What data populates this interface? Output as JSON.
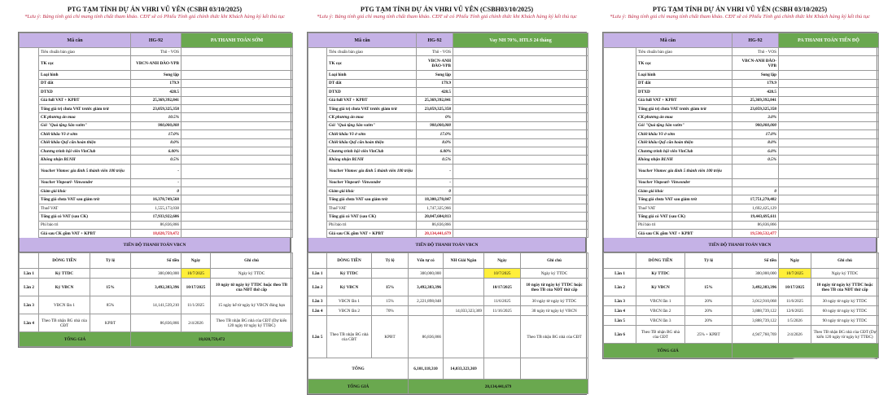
{
  "panels": [
    {
      "title": "PTG TẠM TÍNH DỰ ÁN VHRI VŨ YÊN (CSBH 03/10/2025)",
      "note": "*Lưu ý: Bảng tính giá chỉ mang tính chất tham khảo. CĐT sẽ có Phiếu Tính giá chính thức khi Khách hàng ký kết thủ tục",
      "header": {
        "label": "Mã căn",
        "code": "HG-92",
        "option": "PA THANH TOÁN SỚM"
      },
      "rows": [
        {
          "label": "Tiêu chuẩn bàn giao",
          "value": "Thô - VOS"
        },
        {
          "label": "TK cọc",
          "value": "VBCN-ANH ĐÀO-VPB"
        },
        {
          "label": "Loại hình",
          "value": "Song lập"
        },
        {
          "label": "DT đất",
          "value": "179.9"
        },
        {
          "label": "DTXD",
          "value": "428.5"
        },
        {
          "label": "Giá full VAT + KPBT",
          "value": "25,369,392,841"
        },
        {
          "label": "Tổng giá trị chưa VAT trước giảm trừ",
          "value": "23,059,325,358"
        },
        {
          "label": "CK phương án mua",
          "value": "10.5%"
        },
        {
          "label": "Gói \"Quà tặng Sân vườn\"",
          "value": "900,000,000"
        },
        {
          "label": "Chiết khấu Về ở sớm",
          "value": "17.0%"
        },
        {
          "label": "Chiết khấu Quỹ căn hoàn thiện",
          "value": "8.0%"
        },
        {
          "label": "Chương trình hội viên VinClub",
          "value": "6.00%"
        },
        {
          "label": "Không nhận BLNH",
          "value": "0.5%"
        },
        {
          "label": "Voucher Vinmec gia đình 5 thành viên 100 triệu",
          "value": "-"
        },
        {
          "label": "Voucher Vinpearl- Vinwonder",
          "value": "-"
        },
        {
          "label": "Giảm giá khác",
          "value": "0"
        },
        {
          "label": "Tổng giá chưa VAT sau giảm trừ",
          "value": "16,378,749,568"
        },
        {
          "label": "Thuế VAT",
          "value": "1,555,173,038"
        },
        {
          "label": "Tổng giá có VAT (sau CK)",
          "value": "17,933,922,606"
        },
        {
          "label": "Phí bảo trì",
          "value": "86,836,866"
        },
        {
          "label": "Giá sau CK gồm VAT + KPBT",
          "value": "18,020,759,472"
        }
      ],
      "schedule": {
        "title": "TIẾN ĐỘ THANH TOÁN VBCN",
        "columns": [
          "",
          "DÒNG TIỀN",
          "Tỷ lệ",
          "Số tiền",
          "Ngày",
          "Ghi chú"
        ],
        "rows": [
          [
            "Lần 1",
            "Ký TTDC",
            "",
            "300,000,000",
            "10/7/2025",
            "Ngày ký TTDC"
          ],
          [
            "Lần 2",
            "Ký VBCN",
            "15%",
            "3,492,383,396",
            "10/17/2025",
            "10 ngày từ ngày ký TTDC hoặc theo TB của NĐT thứ cấp"
          ],
          [
            "Lần 3",
            "VBCN lần 1",
            "85%",
            "14,141,539,210",
            "11/1/2025",
            "15 ngày kể từ ngày ký VBCN đúng hạn"
          ],
          [
            "Lần 4",
            "Theo TB nhận BG nhà của CĐT",
            "KPBT",
            "86,836,866",
            "2/4/2026",
            "Theo TB nhận BG nhà của CĐT (Dự kiến 120 ngày từ ngày ký TTĐC)"
          ]
        ],
        "grand_total": {
          "label": "TỔNG GIÁ",
          "value": "18,020,759,472"
        }
      }
    },
    {
      "title": "PTG TẠM TÍNH DỰ ÁN VHRI VŨ YÊN (CSBH03/10/2025)",
      "note": "*Lưu ý: Bảng tính giá chỉ mang tính chất tham khảo. CĐT sẽ có Phiếu Tính giá chính thức khi Khách hàng ký kết thủ tục",
      "header": {
        "label": "Mã căn",
        "code": "HG-92",
        "option": "Vay NH 70%, HTLS 24 tháng"
      },
      "rows": [
        {
          "label": "Tiêu chuẩn bàn giao",
          "value": "Thô - VOS"
        },
        {
          "label": "TK cọc",
          "value": "VBCN-ANH ĐÀO-VPB"
        },
        {
          "label": "Loại hình",
          "value": "Song lập"
        },
        {
          "label": "DT đất",
          "value": "179.9"
        },
        {
          "label": "DTXD",
          "value": "428.5"
        },
        {
          "label": "Giá full VAT + KPBT",
          "value": "25,369,392,841"
        },
        {
          "label": "Tổng giá trị chưa VAT trước giảm trừ",
          "value": "23,059,325,358"
        },
        {
          "label": "CK phương án mua",
          "value": "0%"
        },
        {
          "label": "Gói \"Quà tặng Sân vườn\"",
          "value": "900,000,000"
        },
        {
          "label": "Chiết khấu Về ở sớm",
          "value": "17.0%"
        },
        {
          "label": "Chiết khấu Quỹ căn hoàn thiện",
          "value": "8.0%"
        },
        {
          "label": "Chương trình hội viên VinClub",
          "value": "6.00%"
        },
        {
          "label": "Không nhận BLNH",
          "value": "0.5%"
        },
        {
          "label": "Voucher Vinmec gia đình 5 thành viên 100 triệu",
          "value": "-"
        },
        {
          "label": "Voucher Vinpearl- Vinwonder",
          "value": "-"
        },
        {
          "label": "Giảm giá khác",
          "value": "0"
        },
        {
          "label": "Tổng giá chưa VAT sau giảm trừ",
          "value": "18,300,278,847"
        },
        {
          "label": "Thuế VAT",
          "value": "1,747,325,966"
        },
        {
          "label": "Tổng giá có VAT (sau CK)",
          "value": "20,047,604,813"
        },
        {
          "label": "Phí bảo trì",
          "value": "86,836,866"
        },
        {
          "label": "Giá sau CK gồm VAT + KPBT",
          "value": "20,134,441,679"
        }
      ],
      "schedule": {
        "title": "TIẾN ĐỘ THANH TOÁN VBCN",
        "columns": [
          "",
          "DÒNG TIỀN",
          "Tỷ lệ",
          "Vốn tự có",
          "NH Giải Ngân",
          "Ngày",
          "Ghi chú"
        ],
        "rows": [
          [
            "Lần 1",
            "Ký TTDC",
            "",
            "300,000,000",
            "",
            "10/7/2025",
            "Ngày ký TTDC"
          ],
          [
            "Lần 2",
            "Ký VBCN",
            "15%",
            "3,492,383,396",
            "",
            "10/17/2025",
            "10 ngày từ ngày ký TTDC hoặc theo TB của NĐT thứ cấp"
          ],
          [
            "Lần 3",
            "VBCN lần 1",
            "15%",
            "2,221,898,048",
            "",
            "11/6/2025",
            "30 ngày từ ngày ký TTDC"
          ],
          [
            "Lần 4",
            "VBCN lần 2",
            "70%",
            "",
            "14,033,323,369",
            "11/16/2025",
            "30 ngày từ ngày ký VBCN"
          ],
          [
            "Lần 5",
            "Theo TB nhận BG nhà của CĐT",
            "KPBT",
            "86,836,866",
            "",
            "",
            "Theo TB nhận BG nhà của CĐT"
          ]
        ],
        "total_row": {
          "label": "TỔNG",
          "own_funds": "6,101,118,310",
          "bank": "14,033,323,369"
        },
        "grand_total": {
          "label": "TỔNG GIÁ",
          "value": "20,134,441,679"
        }
      }
    },
    {
      "title": "PTG TẠM TÍNH DỰ ÁN VHRI VŨ YÊN (CSBH 03/10/2025)",
      "note": "*Lưu ý: Bảng tính giá chỉ mang tính chất tham khảo. CĐT sẽ có Phiếu Tính giá chính thức khi Khách hàng ký kết thủ tục",
      "header": {
        "label": "Mã căn",
        "code": "HG-92",
        "option": "PA THANH TOÁN TIẾN ĐỘ"
      },
      "rows": [
        {
          "label": "Tiêu chuẩn bàn giao",
          "value": "Thô - VOS"
        },
        {
          "label": "TK cọc",
          "value": "VBCN-ANH ĐÀO-VPB"
        },
        {
          "label": "Loại hình",
          "value": "Song lập"
        },
        {
          "label": "DT đất",
          "value": "179.9"
        },
        {
          "label": "DTXD",
          "value": "428.5"
        },
        {
          "label": "Giá full VAT + KPBT",
          "value": "25,369,392,841"
        },
        {
          "label": "Tổng giá trị chưa VAT trước giảm trừ",
          "value": "23,059,325,358"
        },
        {
          "label": "CK phương án mua",
          "value": "3.0%"
        },
        {
          "label": "Gói \"Quà tặng Sân vườn\"",
          "value": "900,000,000"
        },
        {
          "label": "Chiết khấu Về ở sớm",
          "value": "17.0%"
        },
        {
          "label": "Chiết khấu Quỹ căn hoàn thiện",
          "value": "8.0%"
        },
        {
          "label": "Chương trình hội viên VinClub",
          "value": "6.0%"
        },
        {
          "label": "Không nhận BLNH",
          "value": "0.5%"
        },
        {
          "label": "Voucher Vinmec gia đình 5 thành viên 100 triệu",
          "value": ""
        },
        {
          "label": "Voucher Vinpearl- Vinwonder",
          "value": ""
        },
        {
          "label": "Giảm giá khác",
          "value": "0"
        },
        {
          "label": "Tổng giá chưa VAT sau giảm trừ",
          "value": "17,751,270,482"
        },
        {
          "label": "Thuế VAT",
          "value": "1,692,425,129"
        },
        {
          "label": "Tổng giá có VAT (sau CK)",
          "value": "19,443,695,611"
        },
        {
          "label": "Phí bảo trì",
          "value": "86,836,866"
        },
        {
          "label": "Giá sau CK gồm VAT + KPBT",
          "value": "19,530,532,477"
        }
      ],
      "schedule": {
        "title": "TIẾN ĐỘ THANH TOÁN VBCN",
        "columns": [
          "",
          "DÒNG TIỀN",
          "Tỷ lệ",
          "Số tiền",
          "Ngày",
          "Ghi chú"
        ],
        "rows": [
          [
            "Lần 1",
            "Ký TTDC",
            "",
            "300,000,000",
            "10/7/2025",
            "Ngày ký TTDC"
          ],
          [
            "Lần 2",
            "Ký VBCN",
            "15%",
            "3,492,383,396",
            "10/17/2025",
            "10 ngày từ ngày ký TTDC hoặc theo TB của NĐT thứ cấp"
          ],
          [
            "Lần 3",
            "VBCN lần 1",
            "20%",
            "3,012,910,068",
            "11/6/2025",
            "30 ngày từ ngày ký TTDC"
          ],
          [
            "Lần 4",
            "VBCN lần 2",
            "20%",
            "3,888,739,122",
            "12/6/2025",
            "60 ngày từ ngày ký TTDC"
          ],
          [
            "Lần 5",
            "VBCN lần 3",
            "20%",
            "3,888,739,122",
            "1/5/2026",
            "90 ngày từ ngày ký TTDC"
          ],
          [
            "Lần 6",
            "Theo TB nhận BG nhà của CĐT",
            "25% + KPBT",
            "4,947,760,769",
            "2/4/2026",
            "Theo TB nhận BG nhà của CĐT (Dự kiến 120 ngày từ ngày ký TTĐC)"
          ]
        ],
        "grand_total": {
          "label": "TỔNG GIÁ",
          "value": ""
        }
      }
    }
  ]
}
